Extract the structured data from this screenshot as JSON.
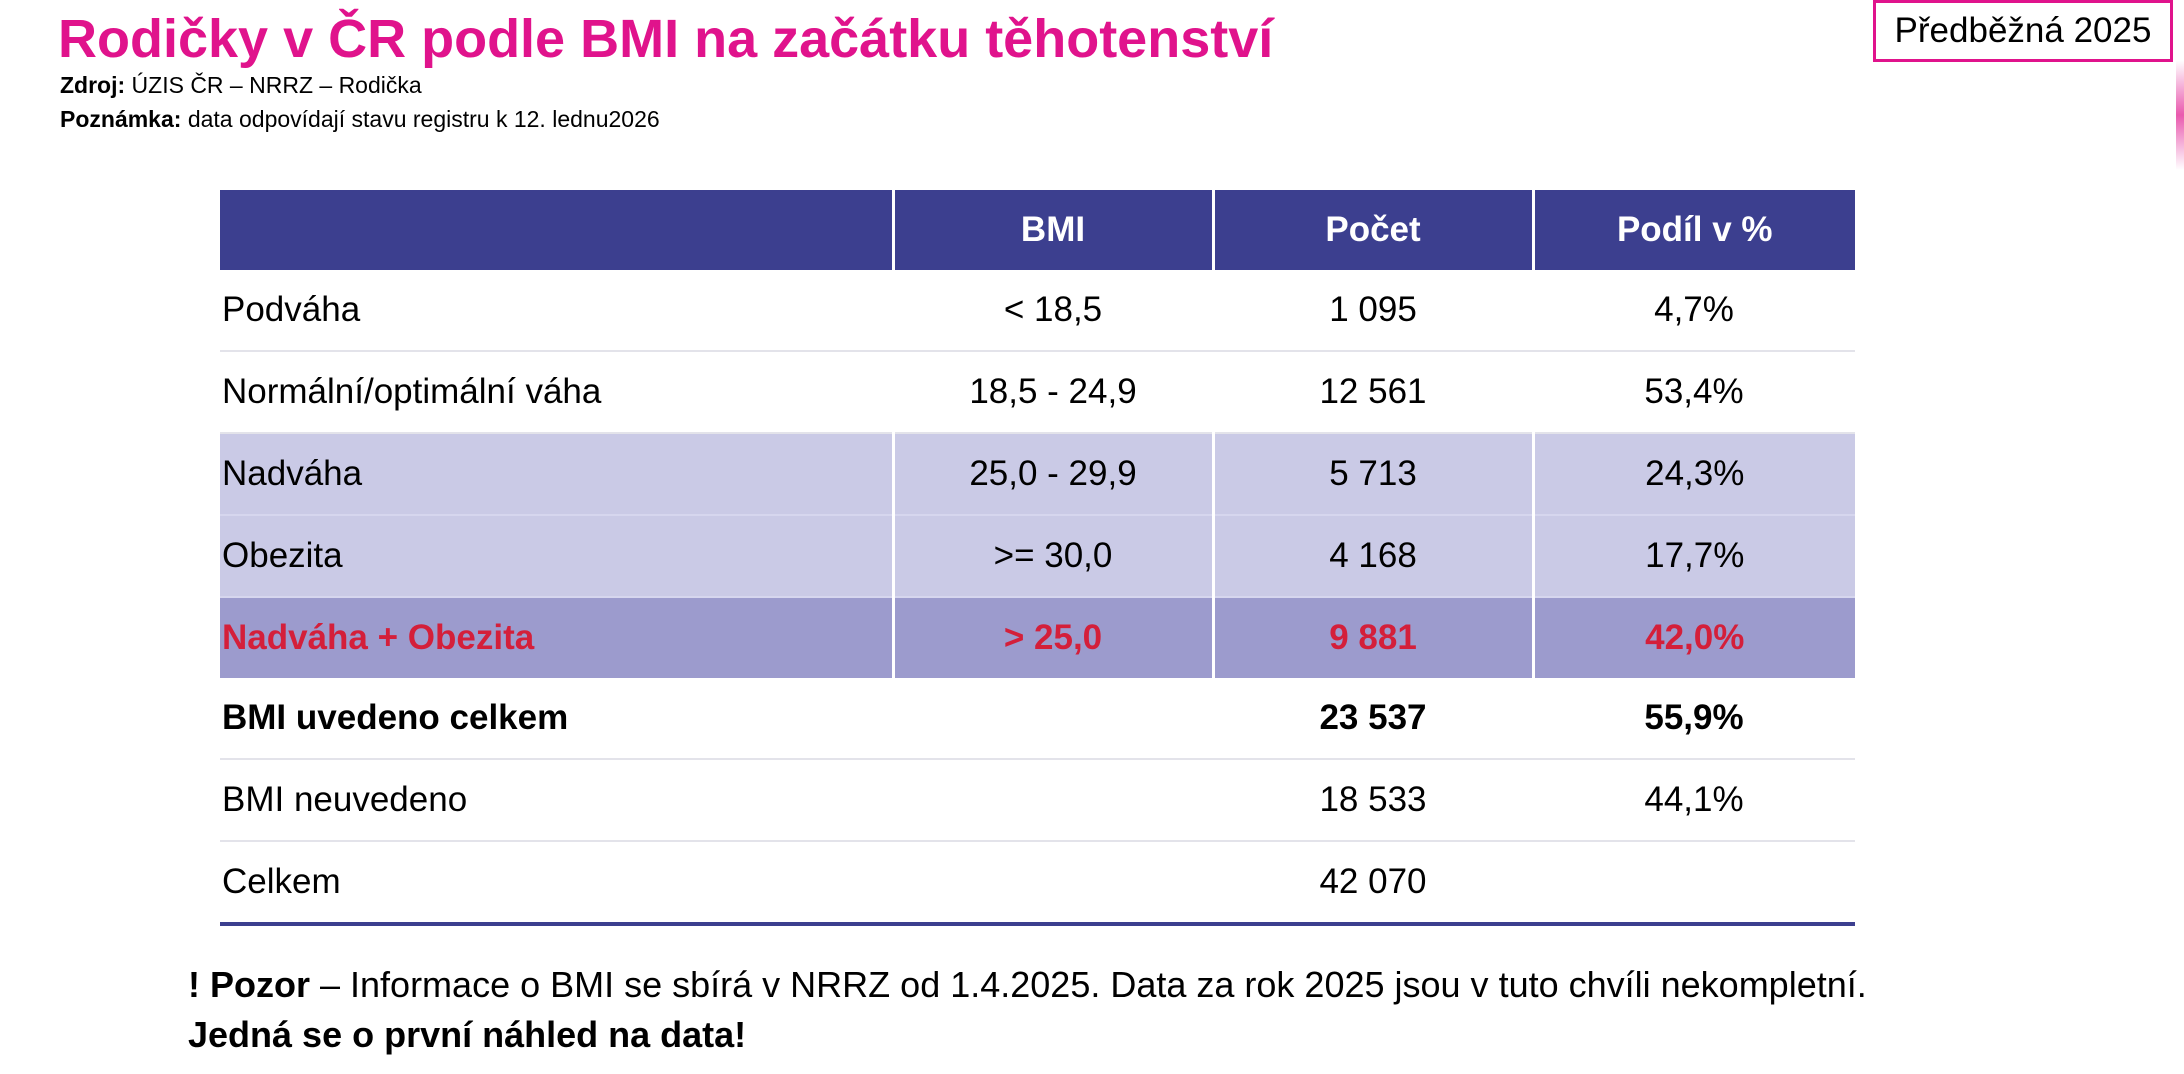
{
  "header": {
    "title": "Rodičky v ČR podle BMI na začátku těhotenství",
    "source_label": "Zdroj:",
    "source_value": "ÚZIS ČR – NRRZ – Rodička",
    "note_label": "Poznámka:",
    "note_value": "data odpovídají stavu registru k 12. lednu2026",
    "badge": "Předběžná 2025"
  },
  "table": {
    "columns": [
      "",
      "BMI",
      "Počet",
      "Podíl v %"
    ],
    "rows": [
      {
        "label": "Podváha",
        "bmi": "< 18,5",
        "count": "1 095",
        "share": "4,7%"
      },
      {
        "label": "Normální/optimální váha",
        "bmi": "18,5 - 24,9",
        "count": "12 561",
        "share": "53,4%"
      },
      {
        "label": "Nadváha",
        "bmi": "25,0 - 29,9",
        "count": "5 713",
        "share": "24,3%"
      },
      {
        "label": "Obezita",
        "bmi": ">= 30,0",
        "count": "4 168",
        "share": "17,7%"
      },
      {
        "label": "Nadváha + Obezita",
        "bmi": "> 25,0",
        "count": "9 881",
        "share": "42,0%"
      },
      {
        "label": "BMI uvedeno celkem",
        "bmi": "",
        "count": "23 537",
        "share": "55,9%"
      },
      {
        "label": "BMI neuvedeno",
        "bmi": "",
        "count": "18 533",
        "share": "44,1%"
      },
      {
        "label": "Celkem",
        "bmi": "",
        "count": "42 070",
        "share": ""
      }
    ]
  },
  "footer": {
    "warning_bold": "! Pozor",
    "warning_text": " – Informace o BMI se sbírá v NRRZ od 1.4.2025. Data za rok 2025 jsou v tuto chvíli nekompletní.",
    "line2": "Jedná se o první náhled na data!"
  },
  "colors": {
    "title": "#e0138c",
    "header_bg": "#3c3f8f",
    "band_light": "#cacae6",
    "band_dark": "#9c9bcd",
    "highlight_text": "#d41f3a"
  }
}
